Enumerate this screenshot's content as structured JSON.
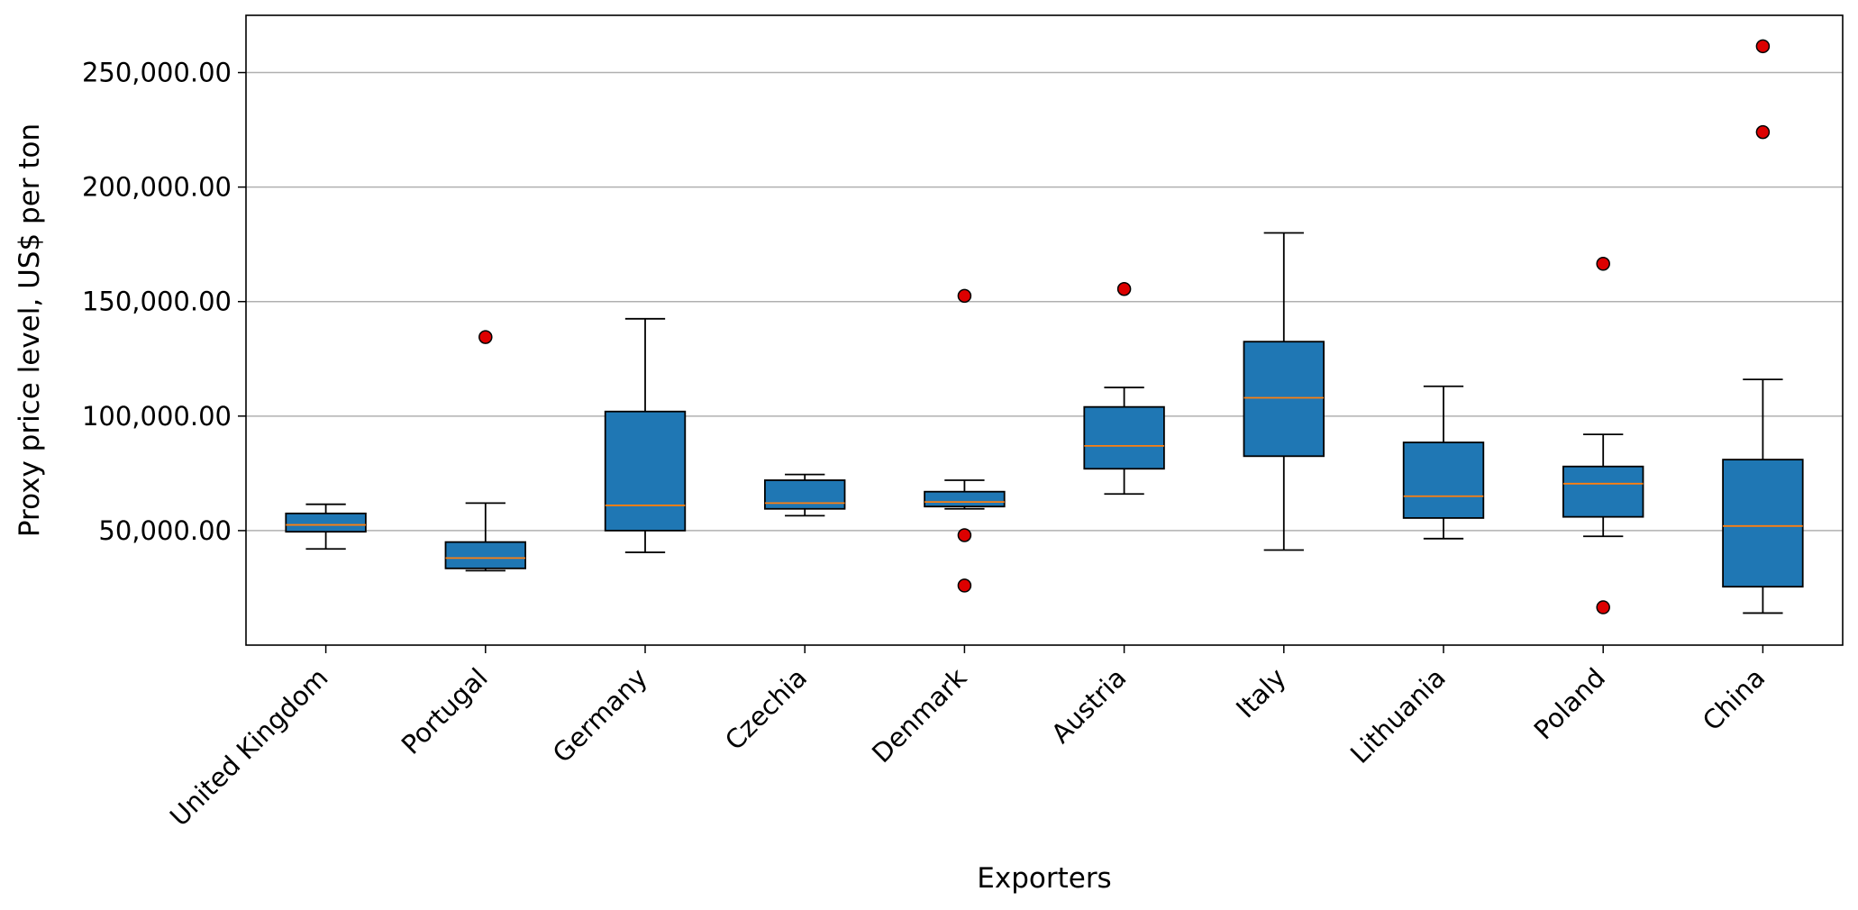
{
  "chart_data": {
    "type": "box",
    "title": "",
    "xlabel": "Exporters",
    "ylabel": "Proxy price level, US$ per ton",
    "ylim": [
      0,
      275000
    ],
    "yticks": [
      50000,
      100000,
      150000,
      200000,
      250000
    ],
    "ytick_labels": [
      "50,000.00",
      "100,000.00",
      "150,000.00",
      "200,000.00",
      "250,000.00"
    ],
    "grid": "y-major",
    "categories": [
      "United Kingdom",
      "Portugal",
      "Germany",
      "Czechia",
      "Denmark",
      "Austria",
      "Italy",
      "Lithuania",
      "Poland",
      "China"
    ],
    "boxes": [
      {
        "category": "United Kingdom",
        "whisker_low": 42000,
        "q1": 49500,
        "median": 52500,
        "q3": 57500,
        "whisker_high": 61500,
        "outliers": []
      },
      {
        "category": "Portugal",
        "whisker_low": 32500,
        "q1": 33500,
        "median": 38000,
        "q3": 45000,
        "whisker_high": 62000,
        "outliers": [
          134500
        ]
      },
      {
        "category": "Germany",
        "whisker_low": 40500,
        "q1": 50000,
        "median": 61000,
        "q3": 102000,
        "whisker_high": 142500,
        "outliers": []
      },
      {
        "category": "Czechia",
        "whisker_low": 56500,
        "q1": 59500,
        "median": 62000,
        "q3": 72000,
        "whisker_high": 74500,
        "outliers": []
      },
      {
        "category": "Denmark",
        "whisker_low": 59500,
        "q1": 60500,
        "median": 62500,
        "q3": 67000,
        "whisker_high": 72000,
        "outliers": [
          152500,
          48000,
          26000
        ]
      },
      {
        "category": "Austria",
        "whisker_low": 66000,
        "q1": 77000,
        "median": 87000,
        "q3": 104000,
        "whisker_high": 112500,
        "outliers": [
          155500
        ]
      },
      {
        "category": "Italy",
        "whisker_low": 41500,
        "q1": 82500,
        "median": 108000,
        "q3": 132500,
        "whisker_high": 180000,
        "outliers": []
      },
      {
        "category": "Lithuania",
        "whisker_low": 46500,
        "q1": 55500,
        "median": 65000,
        "q3": 88500,
        "whisker_high": 113000,
        "outliers": []
      },
      {
        "category": "Poland",
        "whisker_low": 47500,
        "q1": 56000,
        "median": 70500,
        "q3": 78000,
        "whisker_high": 92000,
        "outliers": [
          166500,
          16500
        ]
      },
      {
        "category": "China",
        "whisker_low": 14000,
        "q1": 25500,
        "median": 52000,
        "q3": 81000,
        "whisker_high": 116000,
        "outliers": [
          261500,
          224000
        ]
      }
    ],
    "colors": {
      "box_fill": "#1f77b4",
      "median": "#ff7f0e",
      "outlier_fill": "#dd0000",
      "grid": "#b0b0b0"
    }
  }
}
